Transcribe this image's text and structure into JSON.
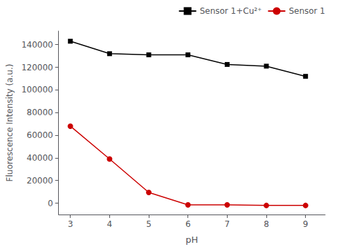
{
  "chart_data": {
    "type": "line",
    "x": [
      3,
      4,
      5,
      6,
      7,
      8,
      9
    ],
    "series": [
      {
        "name": "Sensor 1+Cu²⁺",
        "color": "#000000",
        "marker": "square",
        "values": [
          143000,
          132000,
          131000,
          131000,
          122500,
          121000,
          112000
        ]
      },
      {
        "name": "Sensor 1",
        "color": "#cc0000",
        "marker": "circle",
        "values": [
          68000,
          39000,
          9500,
          -1500,
          -1500,
          -2000,
          -2000
        ]
      }
    ],
    "xlabel": "pH",
    "ylabel": "Fluorescence Intensity (a.u.)",
    "xlim": [
      2.7,
      9.5
    ],
    "xticks": [
      3,
      4,
      5,
      6,
      7,
      8,
      9
    ],
    "ylim": [
      -10000,
      152000
    ],
    "yticks": [
      0,
      20000,
      40000,
      60000,
      80000,
      100000,
      120000,
      140000
    ],
    "grid": false,
    "legend": "upper right"
  }
}
